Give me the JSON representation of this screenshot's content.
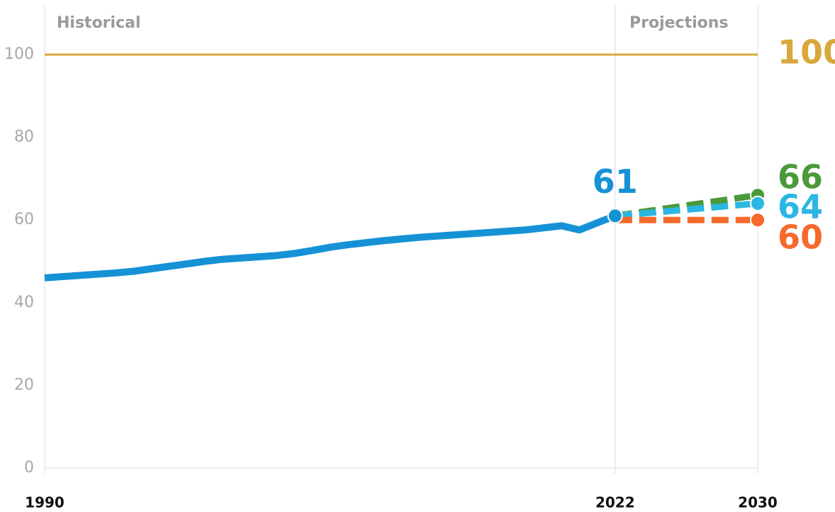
{
  "chart_data": {
    "type": "line",
    "annotations": [
      "Historical",
      "Projections"
    ],
    "xlim": [
      1990,
      2030
    ],
    "xticks": [
      1990,
      2022,
      2030
    ],
    "ylim": [
      0,
      112
    ],
    "yticks": [
      0,
      20,
      40,
      60,
      80,
      100
    ],
    "series": [
      {
        "color": "#d9a83c",
        "dashed": false,
        "width": 3,
        "x": [
          1990,
          2030
        ],
        "values": [
          100,
          100
        ],
        "end_label": true
      },
      {
        "color": "#1592d6",
        "dashed": false,
        "width": 10,
        "x": [
          1990,
          1991,
          1992,
          1993,
          1994,
          1995,
          1996,
          1997,
          1998,
          1999,
          2000,
          2001,
          2002,
          2003,
          2004,
          2005,
          2006,
          2007,
          2008,
          2009,
          2010,
          2011,
          2012,
          2013,
          2014,
          2015,
          2016,
          2017,
          2018,
          2019,
          2020,
          2021,
          2022
        ],
        "values": [
          46.0,
          46.3,
          46.6,
          46.9,
          47.2,
          47.6,
          48.2,
          48.8,
          49.4,
          50.0,
          50.5,
          50.8,
          51.1,
          51.4,
          51.9,
          52.6,
          53.4,
          54.0,
          54.5,
          55.0,
          55.4,
          55.8,
          56.1,
          56.4,
          56.7,
          57.0,
          57.3,
          57.6,
          58.1,
          58.6,
          57.6,
          59.3,
          61
        ],
        "end_label": true
      },
      {
        "color": "#4a9a3a",
        "dashed": true,
        "width": 9,
        "x": [
          2022,
          2030
        ],
        "values": [
          61,
          66
        ],
        "end_label": true
      },
      {
        "color": "#2bb7e2",
        "dashed": true,
        "width": 9,
        "x": [
          2022,
          2030
        ],
        "values": [
          61,
          64
        ],
        "end_label": true
      },
      {
        "color": "#f56a2c",
        "dashed": true,
        "width": 9,
        "x": [
          2022,
          2030
        ],
        "values": [
          60,
          60
        ],
        "end_label": true
      }
    ]
  }
}
